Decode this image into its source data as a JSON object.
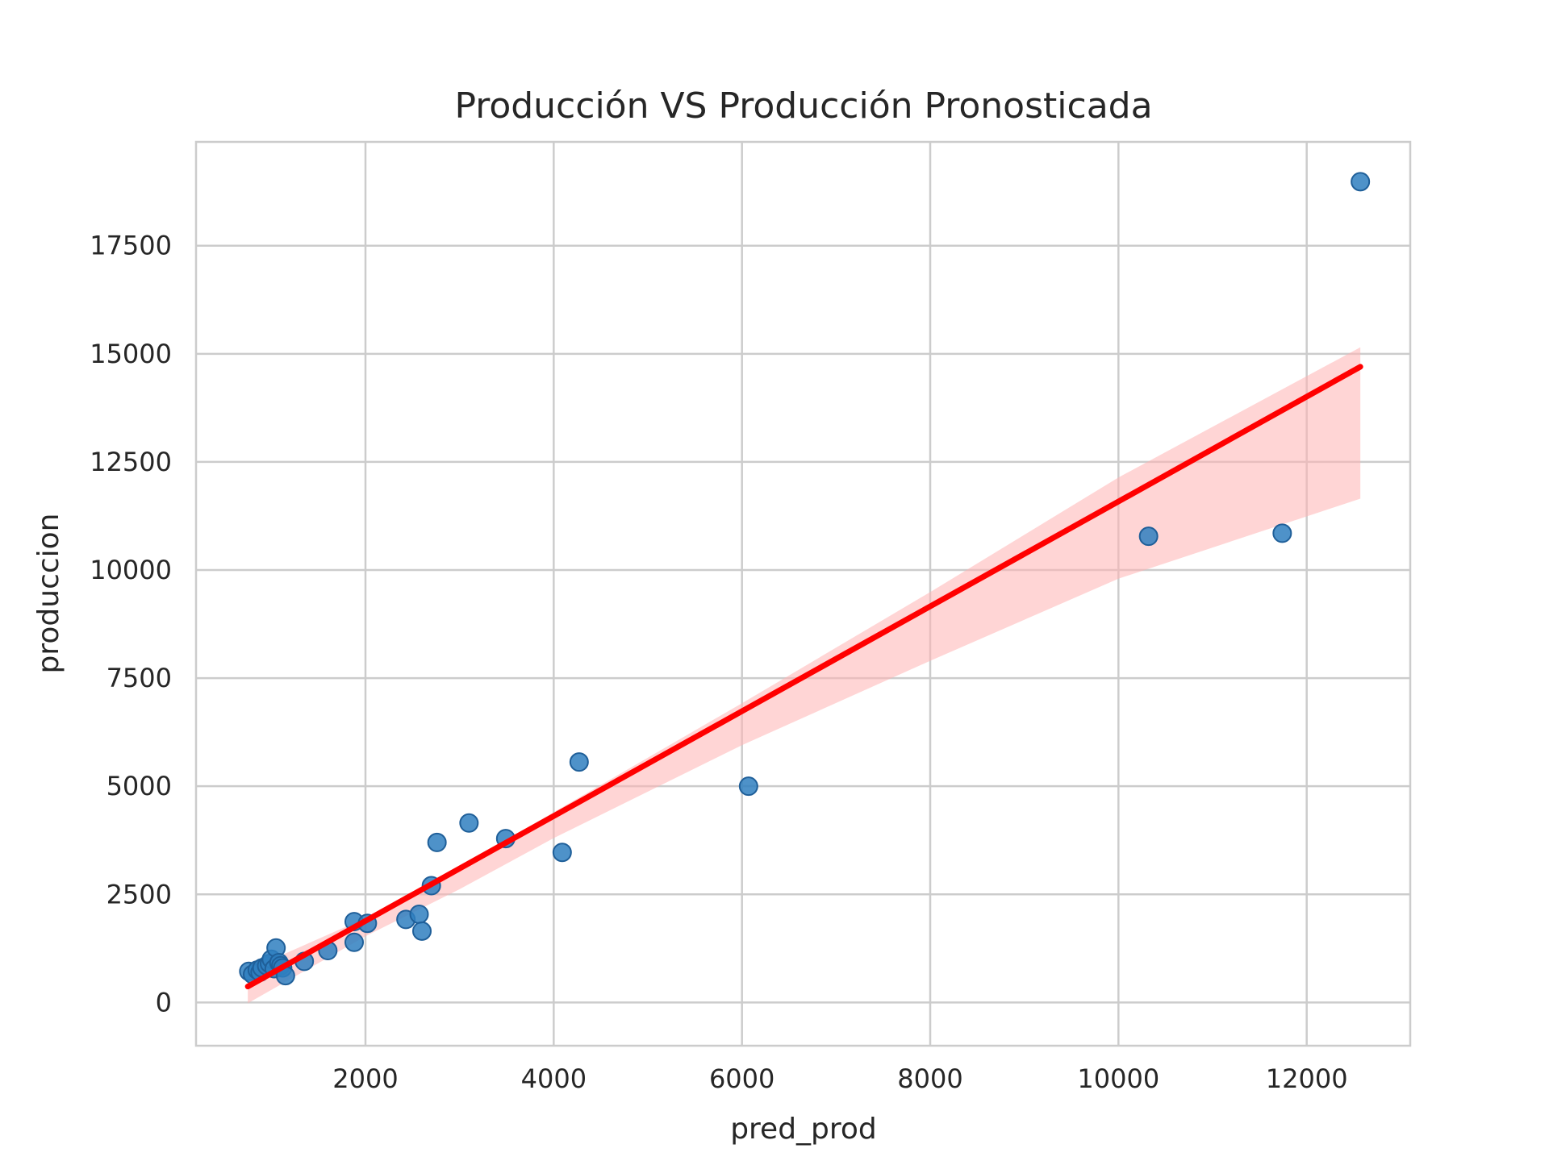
{
  "chart_data": {
    "type": "scatter",
    "title": "Producción VS Producción Pronosticada",
    "xlabel": "pred_prod",
    "ylabel": "produccion",
    "xlim": [
      200,
      13100
    ],
    "ylim": [
      -1000,
      19900
    ],
    "xticks": [
      2000,
      4000,
      6000,
      8000,
      10000,
      12000
    ],
    "yticks": [
      0,
      2500,
      5000,
      7500,
      10000,
      12500,
      15000,
      17500
    ],
    "grid": true,
    "legend": "none",
    "colors": {
      "points": "#2f7fbf",
      "points_edge": "#1f5f99",
      "regression_line": "#ff0000",
      "confidence_band": "#ffb3b3"
    },
    "points": {
      "x": [
        760,
        800,
        850,
        880,
        900,
        950,
        980,
        1000,
        1030,
        1050,
        1080,
        1100,
        1120,
        1150,
        1350,
        1600,
        1880,
        1880,
        2020,
        2430,
        2570,
        2600,
        2700,
        2760,
        3100,
        3490,
        4090,
        4270,
        6070,
        10320,
        11740,
        12570
      ],
      "y": [
        720,
        650,
        750,
        700,
        800,
        850,
        900,
        1000,
        780,
        1260,
        920,
        850,
        800,
        620,
        950,
        1200,
        1870,
        1390,
        1830,
        1920,
        2040,
        1650,
        2700,
        3700,
        4150,
        3790,
        3470,
        5560,
        5000,
        10780,
        10850,
        18980
      ]
    },
    "regression": {
      "x": [
        750,
        12570
      ],
      "y": [
        370,
        14700
      ]
    },
    "confidence_band": {
      "x": [
        750,
        2000,
        3000,
        4000,
        6000,
        8000,
        10000,
        12570
      ],
      "upper": [
        750,
        1950,
        3130,
        4400,
        6920,
        9490,
        12140,
        15150
      ],
      "lower": [
        -20,
        1530,
        2620,
        3800,
        5950,
        7900,
        9800,
        11650
      ]
    }
  }
}
